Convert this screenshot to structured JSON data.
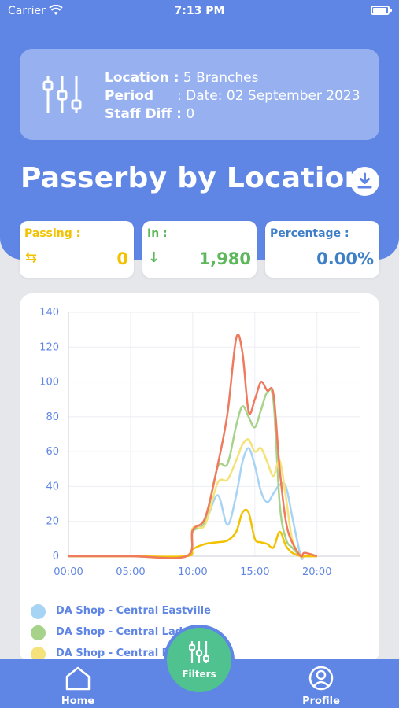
{
  "status_bar": {
    "carrier": "Carrier",
    "time": "7:13 PM"
  },
  "filter_summary": {
    "location_label": "Location :",
    "location_value": "5 Branches",
    "period_label": "Period",
    "period_value": ": Date: 02 September 2023",
    "staff_label": "Staff Diff :",
    "staff_value": "0"
  },
  "page_title": "Passerby by Location",
  "stats": [
    {
      "label": "Passing :",
      "icon": "⇆",
      "value": "0",
      "color": "#f2c200"
    },
    {
      "label": "In :",
      "icon": "↓",
      "value": "1,980",
      "color": "#5db85c"
    },
    {
      "label": "Percentage :",
      "icon": "",
      "value": "0.00%",
      "color": "#3e7fc7"
    }
  ],
  "chart_data": {
    "type": "line",
    "x_ticks": [
      "00:00",
      "05:00",
      "10:00",
      "15:00",
      "20:00"
    ],
    "y_ticks": [
      "0",
      "20",
      "40",
      "60",
      "80",
      "100",
      "120",
      "140"
    ],
    "ylim": [
      0,
      140
    ],
    "xlim": [
      0,
      23.5
    ],
    "grid": true,
    "x": [
      0,
      5,
      9.5,
      10,
      11,
      12,
      12.8,
      13.5,
      14,
      14.5,
      15,
      15.5,
      16,
      16.5,
      17,
      17.5,
      18,
      18.7,
      19,
      20
    ],
    "series": [
      {
        "name": "DA Shop - Central Eastville",
        "color": "#a7d3f5",
        "values": [
          0,
          0,
          0,
          14,
          19,
          35,
          18,
          35,
          54,
          62,
          52,
          37,
          31,
          36,
          41,
          40,
          23,
          0,
          0,
          0
        ]
      },
      {
        "name": "DA Shop - Central Lad",
        "color": "#a6d389",
        "values": [
          0,
          0,
          0,
          14,
          20,
          51,
          53,
          75,
          86,
          80,
          74,
          84,
          94,
          89,
          30,
          10,
          5,
          0,
          0,
          0
        ]
      },
      {
        "name": "DA Shop - Central Ra",
        "color": "#f5e27a",
        "values": [
          0,
          0,
          0,
          16,
          18,
          42,
          44,
          55,
          64,
          67,
          60,
          62,
          54,
          46,
          55,
          34,
          10,
          0,
          0,
          0
        ]
      },
      {
        "name": "",
        "color": "#f2c200",
        "values": [
          0,
          0,
          0,
          4,
          7,
          8,
          9,
          14,
          25,
          25,
          10,
          8,
          7,
          5,
          14,
          6,
          2,
          0,
          0,
          0
        ]
      },
      {
        "name": "",
        "color": "#ef7a5e",
        "values": [
          0,
          0,
          0,
          15,
          22,
          52,
          82,
          125,
          117,
          83,
          90,
          100,
          95,
          93,
          50,
          20,
          8,
          0,
          2,
          0
        ]
      }
    ]
  },
  "legend": [
    {
      "label": "DA Shop - Central Eastville",
      "color": "#a7d3f5"
    },
    {
      "label": "DA Shop - Central Lad",
      "color": "#a6d389"
    },
    {
      "label": "DA Shop - Central Ra",
      "color": "#f5e27a"
    }
  ],
  "nav": {
    "home": "Home",
    "filters": "Filters",
    "profile": "Profile"
  }
}
